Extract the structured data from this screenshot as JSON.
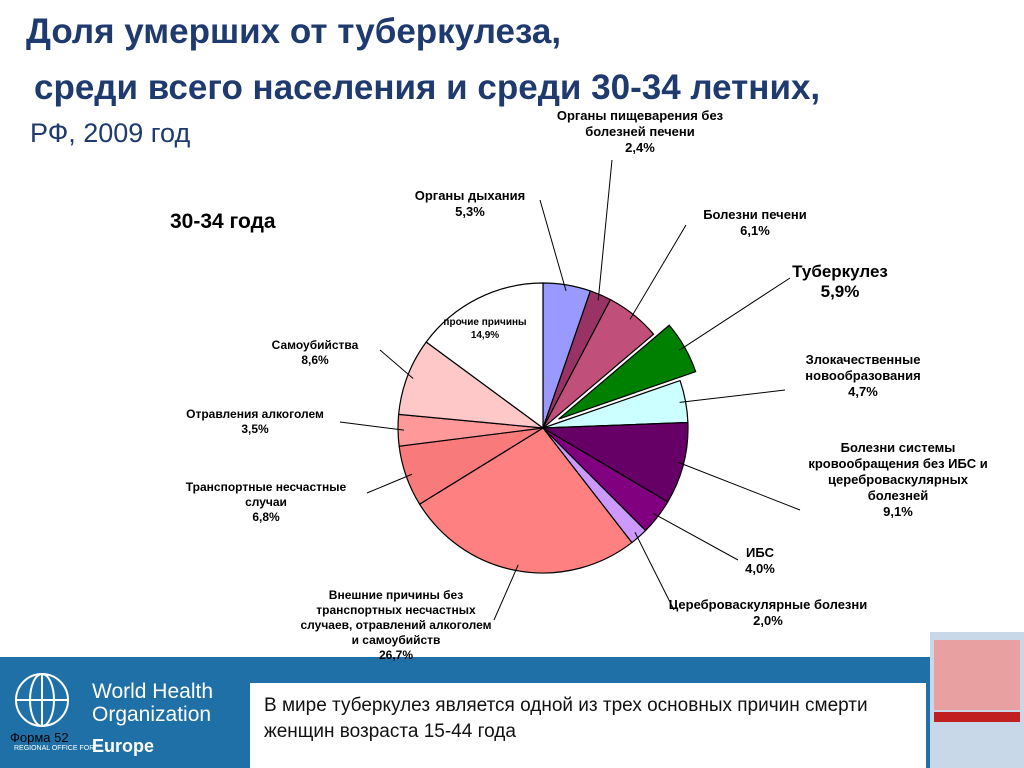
{
  "slide": {
    "title_line1": "Доля умерших от туберкулеза,",
    "title_line2": "среди всего населения и среди 30-34 летних,",
    "subtitle": "РФ, 2009 год",
    "footer_text": "В мире туберкулез является одной из трех основных причин смерти женщин возраста 15-44 года",
    "who_line1": "World Health",
    "who_line2": "Organization",
    "who_regional": "REGIONAL OFFICE FOR",
    "who_europe": "Europe",
    "form": "Форма 52"
  },
  "chart_data": {
    "type": "pie",
    "title": "30-34 года",
    "categories": [
      "Органы дыхания",
      "Органы пищеварения без болезней печени",
      "Болезни печени",
      "Туберкулез",
      "Злокачественные новообразования",
      "Болезни системы кровообращения без ИБС и цереброваскулярных болезней",
      "ИБС",
      "Цереброваскулярные болезни",
      "Внешние причины без транспортных несчастных случаев, отравлений алкоголем и самоубийств",
      "Транспортные несчастные случаи",
      "Отравления алкоголем",
      "Самоубийства",
      "прочие причины"
    ],
    "values": [
      5.3,
      2.4,
      6.1,
      5.9,
      4.7,
      9.1,
      4.0,
      2.0,
      26.7,
      6.8,
      3.5,
      8.6,
      14.9
    ],
    "value_labels": [
      "5,3%",
      "2,4%",
      "6,1%",
      "5,9%",
      "4,7%",
      "9,1%",
      "4,0%",
      "2,0%",
      "26,7%",
      "6,8%",
      "3,5%",
      "8,6%",
      "14,9%"
    ],
    "colors": [
      "#9999ff",
      "#993366",
      "#c0507a",
      "#008000",
      "#ccffff",
      "#660066",
      "#800080",
      "#cc99ff",
      "#ff8080",
      "#f97a7a",
      "#ff9999",
      "#ffc8c8",
      "#ffffff"
    ],
    "exploded": "Туберкулез"
  }
}
